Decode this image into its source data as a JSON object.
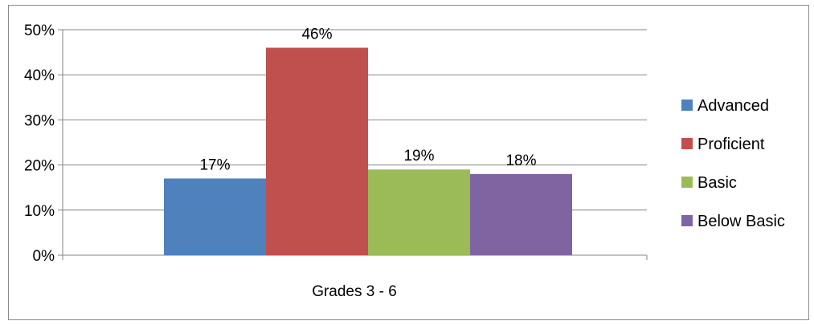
{
  "chart_data": {
    "type": "bar",
    "categories": [
      "Grades 3 - 6"
    ],
    "series": [
      {
        "name": "Advanced",
        "values": [
          17
        ],
        "color": "#4F81BD",
        "label": "17%"
      },
      {
        "name": "Proficient",
        "values": [
          46
        ],
        "color": "#C0504D",
        "label": "46%"
      },
      {
        "name": "Basic",
        "values": [
          19
        ],
        "color": "#9BBB59",
        "label": "19%"
      },
      {
        "name": "Below Basic",
        "values": [
          18
        ],
        "color": "#8064A2",
        "label": "18%"
      }
    ],
    "y_ticks": [
      "0%",
      "10%",
      "20%",
      "30%",
      "40%",
      "50%"
    ],
    "ylim": [
      0,
      50
    ],
    "grid": true,
    "legend_position": "right"
  }
}
